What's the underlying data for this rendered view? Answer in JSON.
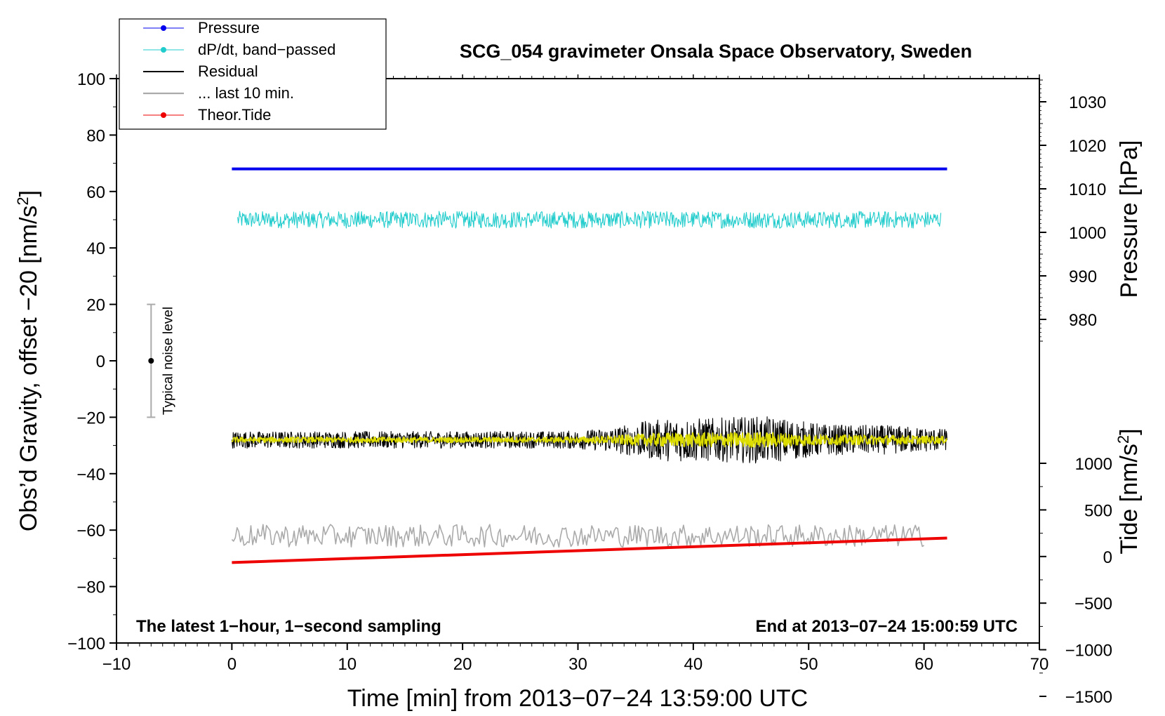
{
  "chart_data": {
    "type": "line",
    "title": "SCG_054 gravimeter Onsala Space Observatory, Sweden",
    "xlabel": "Time [min] from 2013−07−24 13:59:00 UTC",
    "ylabel": "Obs’d Gravity, offset −20 [nm/s²]",
    "ylabel_main": "Obs’d Gravity, offset −20 [nm/s",
    "ylabel_sup": "2",
    "ylabel_close": "]",
    "y2label": "Pressure [hPa]",
    "y3label": "Tide [nm/s²]",
    "y3label_main": "Tide [nm/s",
    "y3label_sup": "2",
    "y3label_close": "]",
    "xlim": [
      -10,
      70
    ],
    "ylim": [
      -100,
      100
    ],
    "y2lim": [
      975,
      1035
    ],
    "y3lim": [
      -1500,
      1000
    ],
    "x_ticks": [
      -10,
      0,
      10,
      20,
      30,
      40,
      50,
      60,
      70
    ],
    "x_tick_labels": [
      "−10",
      "0",
      "10",
      "20",
      "30",
      "40",
      "50",
      "60",
      "70"
    ],
    "y_ticks": [
      -100,
      -80,
      -60,
      -40,
      -20,
      0,
      20,
      40,
      60,
      80,
      100
    ],
    "y_tick_labels": [
      "−100",
      "−80",
      "−60",
      "−40",
      "−20",
      "0",
      "20",
      "40",
      "60",
      "80",
      "100"
    ],
    "y2_ticks": [
      980,
      990,
      1000,
      1010,
      1020,
      1030
    ],
    "y2_tick_labels": [
      "980",
      "990",
      "1000",
      "1010",
      "1020",
      "1030"
    ],
    "y3_ticks": [
      -1500,
      -1000,
      -500,
      0,
      500,
      1000
    ],
    "y3_tick_labels": [
      "−1500",
      "−1000",
      "−500",
      "0",
      "500",
      "1000"
    ],
    "grid": false,
    "legend_position": "top-left",
    "series": [
      {
        "name": "Pressure",
        "color": "#0000ee",
        "axis": "left",
        "x": [
          0,
          62
        ],
        "y": [
          68,
          68
        ],
        "marker": true
      },
      {
        "name": "dP/dt, band−passed",
        "color": "#22cccc",
        "axis": "left",
        "x": [
          0.5,
          61.5
        ],
        "y": [
          50,
          50
        ],
        "noise_amplitude": 3,
        "marker": true
      },
      {
        "name": "Residual",
        "color": "#000000",
        "axis": "left",
        "x": [
          0,
          62
        ],
        "y": [
          -28,
          -28
        ],
        "noise_amplitude": 3
      },
      {
        "name": "",
        "color": "#dddd00",
        "axis": "left",
        "x": [
          0,
          62
        ],
        "y": [
          -28,
          -28
        ],
        "noise_amplitude": 1
      },
      {
        "name": "... last 10 min.",
        "color": "#aaaaaa",
        "axis": "left",
        "x": [
          0,
          60
        ],
        "y": [
          -62,
          -62
        ],
        "noise_amplitude": 4
      },
      {
        "name": "Theor.Tide",
        "color": "#ee0000",
        "axis": "left",
        "x": [
          0,
          62
        ],
        "y": [
          -71.5,
          -62.8
        ],
        "marker": true
      }
    ],
    "noise_bar": {
      "x": -7,
      "y": 0,
      "low": -20,
      "high": 20,
      "label": "Typical noise level"
    },
    "annotations": {
      "left": "The latest 1−hour, 1−second sampling",
      "right": "End at 2013−07−24 15:00:59 UTC"
    }
  }
}
